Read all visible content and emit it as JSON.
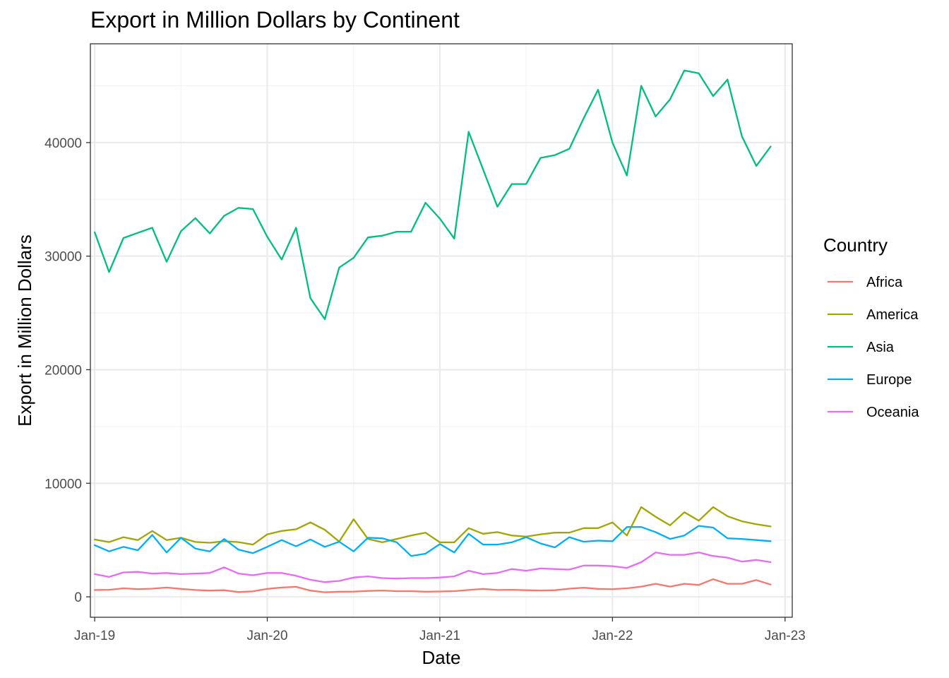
{
  "chart_data": {
    "type": "line",
    "title": "Export in Million Dollars by Continent",
    "xlabel": "Date",
    "ylabel": "Export in Million Dollars",
    "legend_title": "Country",
    "legend_position": "right",
    "grid": true,
    "ylim": [
      -1800,
      48700
    ],
    "y_ticks": [
      0,
      10000,
      20000,
      30000,
      40000
    ],
    "y_tick_labels": [
      "0",
      "10000",
      "20000",
      "30000",
      "40000"
    ],
    "x_start_month": 0,
    "x_end_month": 47,
    "x_range_months": [
      -0.3,
      48.5
    ],
    "x_ticks": [
      0,
      12,
      24,
      36,
      48
    ],
    "x_tick_labels": [
      "Jan-19",
      "Jan-20",
      "Jan-21",
      "Jan-22",
      "Jan-23"
    ],
    "series": [
      {
        "name": "Africa",
        "color": "#F8766D",
        "values": [
          600,
          620,
          750,
          680,
          720,
          820,
          700,
          600,
          550,
          580,
          420,
          480,
          700,
          820,
          880,
          550,
          400,
          450,
          460,
          520,
          560,
          500,
          500,
          450,
          470,
          500,
          600,
          700,
          600,
          620,
          580,
          560,
          580,
          720,
          800,
          700,
          680,
          750,
          900,
          1150,
          900,
          1150,
          1050,
          1550,
          1150,
          1150,
          1480,
          1080
        ]
      },
      {
        "name": "America",
        "color": "#A3A500",
        "values": [
          5050,
          4820,
          5250,
          5000,
          5800,
          5000,
          5200,
          4830,
          4760,
          4900,
          4820,
          4600,
          5500,
          5800,
          5950,
          6550,
          5900,
          4870,
          6830,
          5100,
          4800,
          5100,
          5400,
          5650,
          4800,
          4800,
          6050,
          5550,
          5700,
          5400,
          5300,
          5500,
          5650,
          5650,
          6050,
          6050,
          6550,
          5400,
          7900,
          7050,
          6300,
          7450,
          6700,
          7900,
          7100,
          6650,
          6400,
          6200
        ]
      },
      {
        "name": "Asia",
        "color": "#00BF7D",
        "values": [
          32100,
          28600,
          31600,
          32050,
          32500,
          29500,
          32200,
          33350,
          32000,
          33550,
          34250,
          34150,
          31700,
          29700,
          32500,
          26300,
          24450,
          29000,
          29850,
          31650,
          31800,
          32150,
          32150,
          34700,
          33300,
          31550,
          40950,
          37650,
          34350,
          36350,
          36350,
          38650,
          38900,
          39450,
          42150,
          44650,
          40000,
          37100,
          45000,
          42300,
          43800,
          46350,
          46100,
          44100,
          45550,
          40550,
          37950,
          39650
        ]
      },
      {
        "name": "Europe",
        "color": "#00B0F6",
        "values": [
          4550,
          4000,
          4400,
          4100,
          5450,
          3900,
          5200,
          4250,
          4000,
          5100,
          4150,
          3850,
          4400,
          5000,
          4450,
          5050,
          4400,
          4850,
          4000,
          5200,
          5150,
          4800,
          3600,
          3800,
          4650,
          3900,
          5550,
          4600,
          4600,
          4800,
          5250,
          4700,
          4350,
          5250,
          4850,
          4950,
          4900,
          6150,
          6150,
          5700,
          5100,
          5400,
          6250,
          6100,
          5150,
          5100,
          5000,
          4900
        ]
      },
      {
        "name": "Oceania",
        "color": "#E76BF3",
        "values": [
          2000,
          1750,
          2150,
          2200,
          2050,
          2100,
          2000,
          2050,
          2100,
          2600,
          2050,
          1900,
          2100,
          2100,
          1850,
          1500,
          1300,
          1400,
          1700,
          1800,
          1650,
          1600,
          1650,
          1650,
          1700,
          1800,
          2300,
          2000,
          2100,
          2450,
          2300,
          2500,
          2450,
          2400,
          2750,
          2750,
          2700,
          2550,
          3050,
          3900,
          3700,
          3700,
          3900,
          3600,
          3450,
          3100,
          3250,
          3050
        ]
      }
    ]
  }
}
